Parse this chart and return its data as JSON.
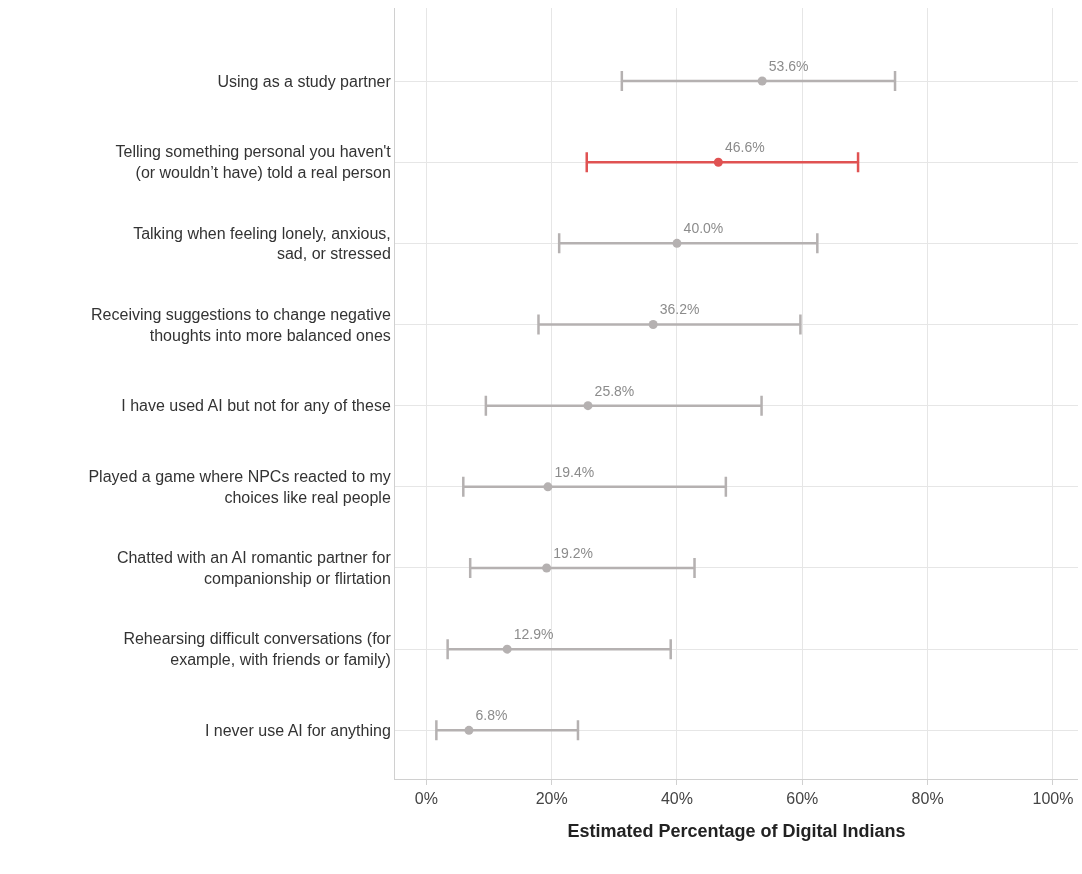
{
  "chart_data": {
    "type": "scatter",
    "orientation": "horizontal",
    "xlabel": "Estimated Percentage of Digital Indians",
    "categories": [
      "Using as a study partner",
      "Telling something personal you haven't\n(or wouldn’t have) told a real person",
      "Talking when feeling lonely, anxious,\nsad, or stressed",
      "Receiving suggestions to change negative\nthoughts into more balanced ones",
      "I have used AI but not for any of these",
      "Played a game where NPCs reacted to my\nchoices like real people",
      "Chatted with an AI romantic partner for\ncompanionship or flirtation",
      "Rehearsing difficult conversations (for\nexample, with friends or family)",
      "I never use AI for anything"
    ],
    "values": [
      53.6,
      46.6,
      40.0,
      36.2,
      25.8,
      19.4,
      19.2,
      12.9,
      6.8
    ],
    "errors": [
      [
        31.2,
        74.8
      ],
      [
        25.6,
        68.9
      ],
      [
        21.2,
        62.4
      ],
      [
        17.9,
        59.7
      ],
      [
        9.5,
        53.5
      ],
      [
        5.9,
        47.8
      ],
      [
        7.0,
        42.8
      ],
      [
        3.4,
        39.0
      ],
      [
        1.6,
        24.2
      ]
    ],
    "value_labels": [
      "53.6%",
      "46.6%",
      "40.0%",
      "36.2%",
      "25.8%",
      "19.4%",
      "19.2%",
      "12.9%",
      "6.8%"
    ],
    "colors": [
      "#b5b1b1",
      "#e05252",
      "#b5b1b1",
      "#b5b1b1",
      "#b5b1b1",
      "#b5b1b1",
      "#b5b1b1",
      "#b5b1b1",
      "#b5b1b1"
    ],
    "xlim": [
      -5,
      104
    ],
    "xticks": [
      {
        "value": 0,
        "label": "0%"
      },
      {
        "value": 20,
        "label": "20%"
      },
      {
        "value": 40,
        "label": "40%"
      },
      {
        "value": 60,
        "label": "60%"
      },
      {
        "value": 80,
        "label": "80%"
      },
      {
        "value": 100,
        "label": "100%"
      }
    ],
    "grid": true,
    "marker": "circle"
  }
}
